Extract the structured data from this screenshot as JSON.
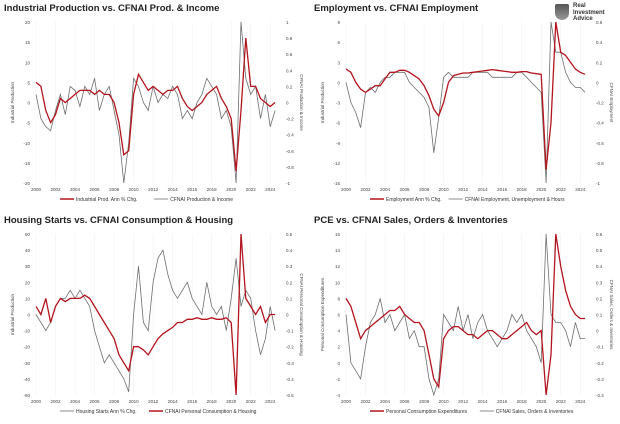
{
  "logo": {
    "line1": "Real",
    "line2": "Investment",
    "line3": "Advice"
  },
  "colors": {
    "red": "#b4141e",
    "gray": "#6e6e6e"
  },
  "chart_data": [
    {
      "type": "line",
      "title": "Industrial Production vs. CFNAI Prod. & Income",
      "ylabel": "Industrial Production",
      "y2label": "CFNAI Production & Income",
      "xlim": [
        2000,
        2025
      ],
      "xticks": [
        2000,
        2002,
        2004,
        2006,
        2008,
        2010,
        2012,
        2014,
        2016,
        2018,
        2020,
        2022,
        2024
      ],
      "ylim": [
        -20,
        20
      ],
      "yticks": [
        -20,
        -15,
        -10,
        -5,
        0,
        5,
        10,
        15,
        20
      ],
      "y2lim": [
        -1,
        1
      ],
      "y2ticks": [
        -1,
        -0.8,
        -0.6,
        -0.4,
        -0.2,
        0,
        0.2,
        0.4,
        0.6,
        0.8,
        1
      ],
      "x_start": 2000,
      "x_step": 0.5,
      "series": [
        {
          "name": "Industrial Prod. Ann % Chg.",
          "axis": "left",
          "color": "red",
          "values": [
            5,
            4,
            -2,
            -5,
            -3,
            1,
            0,
            1,
            2,
            3,
            3,
            3,
            2,
            3,
            2,
            2,
            0,
            -5,
            -13,
            -12,
            2,
            7,
            5,
            3,
            4,
            3,
            2,
            3,
            3,
            4,
            1,
            -1,
            -2,
            -1,
            0,
            2,
            3,
            4,
            1,
            -1,
            -4,
            -17,
            -2,
            16,
            4,
            4,
            1,
            0,
            -1,
            0
          ]
        },
        {
          "name": "CFNAI Production & Income",
          "axis": "right",
          "color": "gray",
          "values": [
            0.1,
            -0.2,
            -0.3,
            -0.35,
            -0.1,
            0.1,
            -0.15,
            0.2,
            0.15,
            -0.05,
            0.2,
            0.1,
            0.3,
            -0.1,
            0.1,
            0.2,
            -0.1,
            -0.4,
            -1,
            -0.5,
            0.3,
            0.2,
            0,
            -0.1,
            0.2,
            0,
            0.1,
            0.05,
            0.2,
            0.1,
            -0.2,
            -0.1,
            -0.2,
            0,
            0.1,
            0.3,
            0.2,
            0.1,
            -0.2,
            -0.1,
            -0.3,
            -1,
            1,
            0.3,
            0.1,
            0.2,
            -0.2,
            0.1,
            -0.3,
            -0.1
          ]
        }
      ]
    },
    {
      "type": "line",
      "title": "Employment vs. CFNAI Employment",
      "ylabel": "Industrial Production",
      "y2label": "CFNAI Employment",
      "xlim": [
        2000,
        2025
      ],
      "xticks": [
        2000,
        2002,
        2004,
        2006,
        2008,
        2010,
        2012,
        2014,
        2016,
        2018,
        2020,
        2022,
        2024
      ],
      "ylim": [
        -15,
        9
      ],
      "yticks": [
        -15,
        -12,
        -9,
        -6,
        -3,
        0,
        3,
        6,
        9
      ],
      "y2lim": [
        -1,
        0.6
      ],
      "y2ticks": [
        -1,
        -0.8,
        -0.6,
        -0.4,
        -0.2,
        0,
        0.2,
        0.4,
        0.6
      ],
      "x_start": 2000,
      "x_step": 0.5,
      "series": [
        {
          "name": "Employment Ann % Chg.",
          "axis": "left",
          "color": "red",
          "values": [
            2,
            1.5,
            0,
            -1,
            -1.5,
            -1,
            -0.5,
            -0.5,
            0.5,
            1.5,
            1.5,
            1.8,
            1.8,
            1.5,
            1,
            0.5,
            -0.5,
            -2,
            -4,
            -5,
            -3,
            0,
            1,
            1.2,
            1.4,
            1.4,
            1.5,
            1.6,
            1.7,
            1.8,
            1.9,
            1.8,
            1.7,
            1.6,
            1.5,
            1.5,
            1.6,
            1.6,
            1.4,
            1.3,
            1.2,
            -13,
            -6,
            9,
            4.5,
            4,
            3,
            2,
            1.5,
            1.2
          ]
        },
        {
          "name": "CFNAI Employment, Unemployment & Hours",
          "axis": "right",
          "color": "gray",
          "values": [
            0,
            -0.2,
            -0.3,
            -0.45,
            -0.1,
            -0.05,
            -0.1,
            0,
            0.05,
            0.05,
            0.1,
            0.1,
            0.1,
            0,
            -0.05,
            -0.1,
            -0.15,
            -0.25,
            -0.7,
            -0.35,
            0.05,
            0.1,
            0.05,
            0.05,
            0.05,
            0.05,
            0.1,
            0.1,
            0.1,
            0.1,
            0.05,
            0.05,
            0.05,
            0.05,
            0.05,
            0.1,
            0.1,
            0.05,
            0,
            -0.05,
            -0.1,
            -1,
            0.6,
            0.3,
            0.3,
            0.1,
            0,
            -0.05,
            -0.05,
            -0.1
          ]
        }
      ]
    },
    {
      "type": "line",
      "title": "Housing Starts vs. CFNAI Consumption & Housing",
      "ylabel": "Industrial Production",
      "y2label": "CFNAI Personal Consumption & Housing",
      "xlim": [
        2000,
        2025
      ],
      "xticks": [
        2000,
        2002,
        2004,
        2006,
        2008,
        2010,
        2012,
        2014,
        2016,
        2018,
        2020,
        2022,
        2024
      ],
      "ylim": [
        -50,
        50
      ],
      "yticks": [
        -50,
        -40,
        -30,
        -20,
        -10,
        0,
        10,
        20,
        30,
        40,
        50
      ],
      "y2lim": [
        -0.5,
        0.5
      ],
      "y2ticks": [
        -0.5,
        -0.4,
        -0.3,
        -0.2,
        -0.1,
        0,
        0.1,
        0.2,
        0.3,
        0.4,
        0.5
      ],
      "x_start": 2000,
      "x_step": 0.5,
      "series": [
        {
          "name": "Housing Starts Ann % Chg.",
          "axis": "left",
          "color": "gray",
          "values": [
            0,
            -5,
            -10,
            -5,
            5,
            10,
            10,
            15,
            10,
            15,
            10,
            5,
            -10,
            -20,
            -30,
            -25,
            -30,
            -35,
            -40,
            -48,
            0,
            30,
            -5,
            -10,
            20,
            35,
            40,
            25,
            15,
            10,
            15,
            20,
            10,
            5,
            0,
            20,
            5,
            0,
            5,
            -10,
            10,
            35,
            5,
            15,
            10,
            -10,
            -25,
            -15,
            5,
            -10
          ]
        },
        {
          "name": "CFNAI Personal Consumption & Housing",
          "axis": "right",
          "color": "red",
          "values": [
            0.05,
            0,
            0.1,
            -0.05,
            0.05,
            0.1,
            0.08,
            0.1,
            0.1,
            0.1,
            0.12,
            0.1,
            0.05,
            0,
            -0.05,
            -0.1,
            -0.15,
            -0.25,
            -0.3,
            -0.35,
            -0.2,
            -0.2,
            -0.22,
            -0.25,
            -0.2,
            -0.15,
            -0.12,
            -0.1,
            -0.08,
            -0.05,
            -0.05,
            -0.03,
            -0.03,
            -0.02,
            -0.03,
            -0.03,
            -0.02,
            -0.03,
            -0.03,
            -0.02,
            -0.05,
            -0.5,
            0.5,
            0.1,
            0.05,
            0,
            0.05,
            -0.05,
            0,
            0
          ]
        }
      ]
    },
    {
      "type": "line",
      "title": "PCE vs. CFNAI Sales, Orders & Inventories",
      "ylabel": "Personal Consumption Expenditures",
      "y2label": "CFNAI Sales, Orders & Inventories",
      "xlim": [
        2000,
        2025
      ],
      "xticks": [
        2000,
        2002,
        2004,
        2006,
        2008,
        2010,
        2012,
        2014,
        2016,
        2018,
        2020,
        2022,
        2024
      ],
      "ylim": [
        -4,
        16
      ],
      "yticks": [
        -4,
        -2,
        0,
        2,
        4,
        6,
        8,
        10,
        12,
        14,
        16
      ],
      "y2lim": [
        -0.4,
        0.6
      ],
      "y2ticks": [
        -0.4,
        -0.3,
        -0.2,
        -0.1,
        0,
        0.1,
        0.2,
        0.3,
        0.4,
        0.5,
        0.6
      ],
      "x_start": 2000,
      "x_step": 0.5,
      "series": [
        {
          "name": "Personal Consumption Expenditures",
          "axis": "left",
          "color": "red",
          "values": [
            8,
            7,
            5,
            3,
            4,
            4.5,
            5,
            5.5,
            6,
            6.5,
            6.5,
            7,
            6,
            5.5,
            5,
            5,
            4,
            1,
            -2,
            -3,
            3,
            4,
            4.5,
            4.5,
            4,
            3.5,
            3.5,
            3,
            3.5,
            4,
            4,
            3.5,
            3,
            3,
            3.5,
            4,
            4.5,
            5,
            4,
            3.5,
            4,
            -4,
            1,
            16,
            12,
            9,
            7,
            6,
            5.5,
            5.5
          ]
        },
        {
          "name": "CFNAI Sales, Orders & Inventories",
          "axis": "right",
          "color": "gray",
          "values": [
            0.1,
            -0.2,
            -0.25,
            -0.3,
            -0.1,
            0.05,
            0.1,
            0.2,
            0.05,
            0.1,
            0,
            0.05,
            0.1,
            -0.05,
            0,
            -0.1,
            -0.1,
            -0.3,
            -0.4,
            -0.3,
            0.1,
            0.05,
            0,
            0.15,
            0,
            0.1,
            -0.05,
            0.05,
            0.1,
            0,
            -0.05,
            -0.1,
            -0.05,
            0,
            0.1,
            0.05,
            0.1,
            0,
            -0.05,
            -0.1,
            -0.2,
            0.6,
            0.1,
            0.05,
            0.05,
            0,
            -0.1,
            0.05,
            -0.05,
            -0.05
          ]
        }
      ]
    }
  ]
}
